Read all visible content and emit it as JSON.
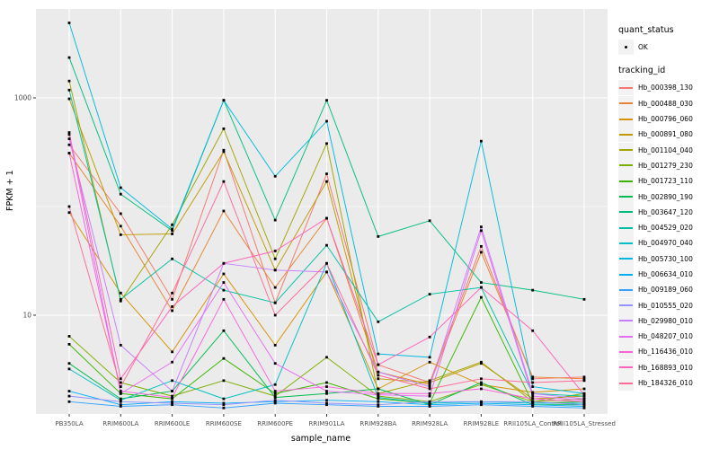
{
  "chart_data": {
    "type": "line",
    "title": "",
    "xlabel": "sample_name",
    "ylabel": "FPKM + 1",
    "y_scale": "log10",
    "grid": true,
    "legend_position": "right",
    "panel_bg": "#EBEBEB",
    "gridline_color": "#FFFFFF",
    "point_color": "#000000",
    "tick_label_color": "#4D4D4D",
    "y_ticks": [
      1000,
      10
    ],
    "y_tick_labels": [
      "1000",
      "10"
    ],
    "y_minor_ticks": [
      100
    ],
    "ylim": [
      1.2,
      6500
    ],
    "categories": [
      "PB350LA",
      "RRIM600LA",
      "RRIM600LE",
      "RRIM600SE",
      "RRIM600PE",
      "RRIM901LA",
      "RRIM928BA",
      "RRIM928LA",
      "RRIM928LE",
      "RRII105LA_Control",
      "RRII105LA_Stressed"
    ],
    "series": [
      {
        "name": "Hb_000398_130",
        "color": "#F8766D",
        "values": [
          370,
          86,
          14,
          330,
          13,
          200,
          3.5,
          2.4,
          43,
          2.6,
          2.7
        ]
      },
      {
        "name": "Hb_000488_030",
        "color": "#EA8331",
        "values": [
          310,
          66,
          11,
          91,
          18,
          78,
          3.0,
          2.3,
          38,
          2.7,
          2.6
        ]
      },
      {
        "name": "Hb_000796_060",
        "color": "#D89000",
        "values": [
          88,
          16,
          4.6,
          24,
          5.3,
          25,
          2.1,
          3.7,
          2.3,
          1.95,
          2.1
        ]
      },
      {
        "name": "Hb_000891_080",
        "color": "#C09B00",
        "values": [
          980,
          55,
          56,
          320,
          26,
          170,
          2.6,
          2.4,
          3.6,
          1.7,
          1.8
        ]
      },
      {
        "name": "Hb_001104_040",
        "color": "#A3A500",
        "values": [
          1430,
          13.5,
          68,
          520,
          33,
          380,
          1.9,
          2.5,
          3.7,
          1.6,
          1.7
        ]
      },
      {
        "name": "Hb_001279_230",
        "color": "#7CAE00",
        "values": [
          6.4,
          2.4,
          1.8,
          2.5,
          1.8,
          4.1,
          1.8,
          1.6,
          2.3,
          1.6,
          1.9
        ]
      },
      {
        "name": "Hb_001723_110",
        "color": "#39B600",
        "values": [
          5.4,
          1.9,
          1.7,
          4.0,
          1.9,
          2.4,
          1.7,
          1.55,
          14.6,
          1.55,
          1.6
        ]
      },
      {
        "name": "Hb_002890_190",
        "color": "#00BB4E",
        "values": [
          3.6,
          1.7,
          2.0,
          7.2,
          1.75,
          1.9,
          2.1,
          1.5,
          2.4,
          1.5,
          1.5
        ]
      },
      {
        "name": "Hb_003647_120",
        "color": "#00BF7D",
        "values": [
          2350,
          130,
          60,
          950,
          75,
          950,
          53,
          74,
          20,
          17,
          14
        ]
      },
      {
        "name": "Hb_004529_020",
        "color": "#00C1A3",
        "values": [
          1180,
          14,
          33,
          17,
          13,
          44,
          8.7,
          15.6,
          18,
          1.9,
          1.8
        ]
      },
      {
        "name": "Hb_004970_040",
        "color": "#00BFC4",
        "values": [
          3.2,
          1.65,
          2.5,
          1.7,
          2.3,
          30,
          1.75,
          1.55,
          1.6,
          1.55,
          1.55
        ]
      },
      {
        "name": "Hb_005730_100",
        "color": "#00BAE0",
        "values": [
          4900,
          149,
          62,
          950,
          190,
          610,
          4.4,
          4.1,
          400,
          2.2,
          1.9
        ]
      },
      {
        "name": "Hb_006634_010",
        "color": "#00B0F6",
        "values": [
          2.0,
          1.5,
          1.6,
          1.55,
          1.6,
          1.65,
          1.6,
          1.5,
          1.55,
          1.5,
          1.45
        ]
      },
      {
        "name": "Hb_009189_060",
        "color": "#35A2FF",
        "values": [
          1.6,
          1.45,
          1.5,
          1.4,
          1.55,
          1.5,
          1.45,
          1.45,
          1.5,
          1.45,
          1.4
        ]
      },
      {
        "name": "Hb_010555_020",
        "color": "#9590FF",
        "values": [
          1.8,
          1.6,
          1.55,
          1.5,
          1.65,
          1.55,
          1.5,
          1.6,
          1.6,
          1.6,
          1.5
        ]
      },
      {
        "name": "Hb_029980_010",
        "color": "#C77CFF",
        "values": [
          420,
          5.3,
          2.0,
          30,
          26,
          25,
          3.0,
          2.2,
          65,
          1.9,
          1.7
        ]
      },
      {
        "name": "Hb_048207_010",
        "color": "#E76BF3",
        "values": [
          460,
          1.9,
          3.7,
          20,
          3.6,
          2.0,
          1.85,
          1.8,
          60,
          1.8,
          1.65
        ]
      },
      {
        "name": "Hb_116436_010",
        "color": "#FA62DB",
        "values": [
          310,
          2.0,
          1.75,
          14,
          2.0,
          2.2,
          1.9,
          1.9,
          2.1,
          1.7,
          1.6
        ]
      },
      {
        "name": "Hb_168893_010",
        "color": "#FF62BC",
        "values": [
          480,
          2.6,
          12,
          30,
          39,
          78,
          3.5,
          6.3,
          18,
          7.2,
          1.85
        ]
      },
      {
        "name": "Hb_184326_010",
        "color": "#FF6A98",
        "values": [
          100,
          2.2,
          16,
          170,
          10,
          30,
          2.8,
          2.1,
          2.6,
          2.4,
          2.5
        ]
      }
    ]
  },
  "legend": {
    "quant_status": {
      "title": "quant_status",
      "items": [
        {
          "label": "OK",
          "marker": "black-point"
        }
      ]
    },
    "tracking_id": {
      "title": "tracking_id"
    }
  }
}
